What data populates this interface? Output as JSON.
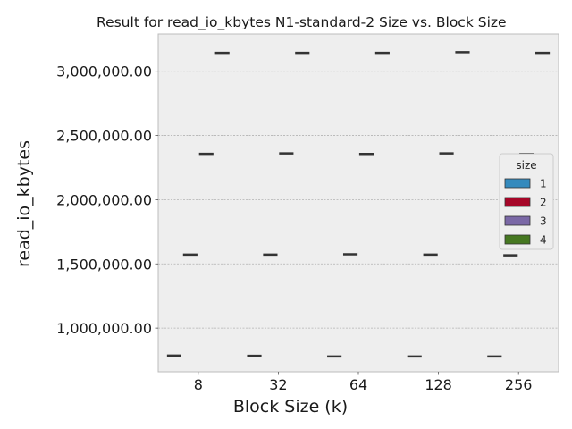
{
  "chart_data": {
    "type": "box",
    "title": "Result for read_io_kbytes N1-standard-2 Size vs. Block Size",
    "xlabel": "Block Size (k)",
    "ylabel": "read_io_kbytes",
    "categories": [
      "8",
      "32",
      "64",
      "128",
      "256"
    ],
    "ylim": [
      660000,
      3290000
    ],
    "yticks": [
      1000000,
      1500000,
      2000000,
      2500000,
      3000000
    ],
    "ytick_labels": [
      "1,000,000.00",
      "1,500,000.00",
      "2,000,000.00",
      "2,500,000.00",
      "3,000,000.00"
    ],
    "grid": true,
    "legend": {
      "title": "size",
      "placement": "right"
    },
    "series": [
      {
        "name": "1",
        "color": "#348abd",
        "values": [
          786000,
          784000,
          779000,
          779000,
          779000
        ]
      },
      {
        "name": "2",
        "color": "#a60628",
        "values": [
          1572000,
          1572000,
          1575000,
          1572000,
          1567000
        ]
      },
      {
        "name": "3",
        "color": "#7a68a6",
        "values": [
          2357000,
          2360000,
          2356000,
          2360000,
          2356000
        ]
      },
      {
        "name": "4",
        "color": "#467821",
        "values": [
          3143000,
          3143000,
          3143000,
          3148000,
          3143000
        ]
      }
    ]
  }
}
